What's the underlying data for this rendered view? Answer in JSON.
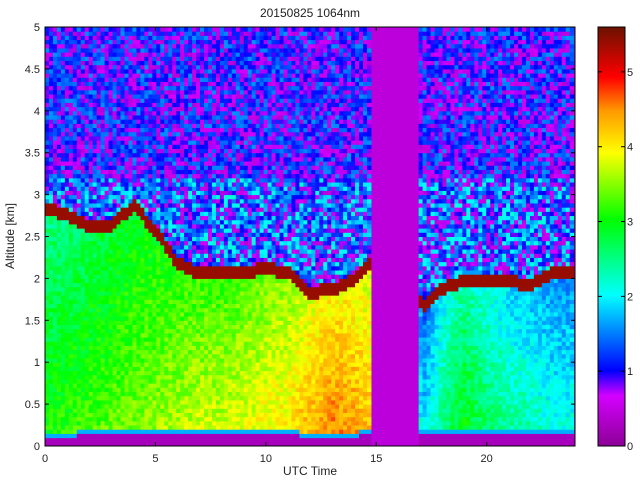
{
  "chart_data": {
    "type": "heatmap",
    "title": "20150825 1064nm",
    "xlabel": "UTC Time",
    "ylabel": "Altitude [km]",
    "xlim": [
      0,
      24
    ],
    "ylim": [
      0,
      5
    ],
    "x_ticks": [
      0,
      5,
      10,
      15,
      20
    ],
    "y_ticks": [
      0,
      0.5,
      1,
      1.5,
      2,
      2.5,
      3,
      3.5,
      4,
      4.5,
      5
    ],
    "colorbar": {
      "range": [
        0,
        5.6
      ],
      "ticks": [
        0,
        1,
        2,
        3,
        4,
        5
      ]
    },
    "data_gaps": [
      [
        14.8,
        17.0
      ]
    ],
    "profiles": [
      {
        "t": 0.0,
        "bl_top": 2.75,
        "surf": 0.12,
        "aerosol": 3.1
      },
      {
        "t": 1.0,
        "bl_top": 2.7,
        "surf": 0.12,
        "aerosol": 3.2
      },
      {
        "t": 2.0,
        "bl_top": 2.55,
        "surf": 0.13,
        "aerosol": 3.3
      },
      {
        "t": 3.0,
        "bl_top": 2.55,
        "surf": 0.13,
        "aerosol": 3.4
      },
      {
        "t": 4.0,
        "bl_top": 2.8,
        "surf": 0.13,
        "aerosol": 3.5
      },
      {
        "t": 5.0,
        "bl_top": 2.5,
        "surf": 0.13,
        "aerosol": 3.6
      },
      {
        "t": 6.0,
        "bl_top": 2.1,
        "surf": 0.13,
        "aerosol": 3.7
      },
      {
        "t": 7.0,
        "bl_top": 2.0,
        "surf": 0.13,
        "aerosol": 3.8
      },
      {
        "t": 8.0,
        "bl_top": 2.0,
        "surf": 0.13,
        "aerosol": 3.8
      },
      {
        "t": 9.0,
        "bl_top": 2.0,
        "surf": 0.13,
        "aerosol": 3.9
      },
      {
        "t": 10.0,
        "bl_top": 2.05,
        "surf": 0.13,
        "aerosol": 4.0
      },
      {
        "t": 11.0,
        "bl_top": 2.0,
        "surf": 0.13,
        "aerosol": 4.1
      },
      {
        "t": 12.0,
        "bl_top": 1.75,
        "surf": 0.12,
        "aerosol": 4.4
      },
      {
        "t": 13.0,
        "bl_top": 1.8,
        "surf": 0.12,
        "aerosol": 4.6
      },
      {
        "t": 14.0,
        "bl_top": 1.9,
        "surf": 0.12,
        "aerosol": 4.5
      },
      {
        "t": 14.7,
        "bl_top": 2.1,
        "surf": 0.14,
        "aerosol": 4.3
      },
      {
        "t": 17.2,
        "bl_top": 1.6,
        "surf": 0.14,
        "aerosol": 2.0
      },
      {
        "t": 18.0,
        "bl_top": 1.8,
        "surf": 0.14,
        "aerosol": 2.6
      },
      {
        "t": 19.0,
        "bl_top": 1.9,
        "surf": 0.14,
        "aerosol": 3.0
      },
      {
        "t": 20.0,
        "bl_top": 1.9,
        "surf": 0.14,
        "aerosol": 2.7
      },
      {
        "t": 21.0,
        "bl_top": 1.9,
        "surf": 0.14,
        "aerosol": 2.5
      },
      {
        "t": 22.0,
        "bl_top": 1.85,
        "surf": 0.14,
        "aerosol": 2.4
      },
      {
        "t": 23.0,
        "bl_top": 2.0,
        "surf": 0.14,
        "aerosol": 2.2
      },
      {
        "t": 24.0,
        "bl_top": 2.0,
        "surf": 0.14,
        "aerosol": 2.2
      }
    ],
    "grid": false,
    "legend": "colorbar-right"
  }
}
